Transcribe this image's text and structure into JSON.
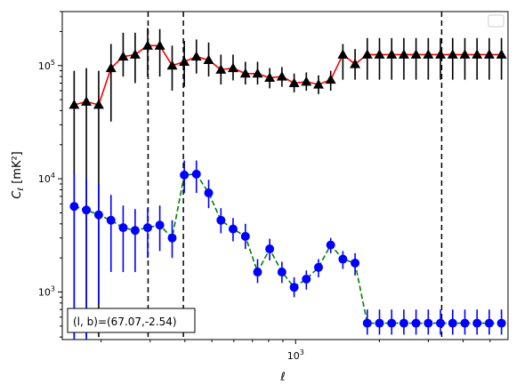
{
  "chart_data": {
    "type": "line",
    "xscale": "log",
    "yscale": "log",
    "xlim": [
      145,
      5800
    ],
    "ylim": [
      380,
      300000
    ],
    "xlabel": "ℓ",
    "ylabel_main": "C",
    "ylabel_sub": "ℓ",
    "ylabel_units": "[mK²]",
    "x_major_ticks": [
      {
        "value": 1000,
        "base": "10",
        "exp": "3"
      }
    ],
    "y_major_ticks": [
      {
        "value": 1000,
        "base": "10",
        "exp": "3"
      },
      {
        "value": 10000,
        "base": "10",
        "exp": "4"
      },
      {
        "value": 100000,
        "base": "10",
        "exp": "5"
      }
    ],
    "vlines": [
      295,
      395,
      3350
    ],
    "annotation": "(l, b)=(67.07,-2.54)",
    "legend": {
      "placement": "top-right",
      "entries": []
    },
    "series": [
      {
        "color": "#ff0000",
        "marker": "triangle",
        "marker_color": "#000000",
        "errorbar_color": "#000000",
        "linestyle": "solid",
        "x": [
          160,
          177,
          196,
          217,
          240,
          265,
          294,
          325,
          360,
          398,
          440,
          487,
          539,
          596,
          660,
          730,
          807,
          893,
          988,
          1093,
          1209,
          1337,
          1479,
          1636,
          1810,
          2002,
          2215,
          2450,
          2710,
          2998,
          3317,
          3669,
          4059,
          4490,
          4967,
          5495
        ],
        "y": [
          45000,
          48000,
          45000,
          95000,
          120000,
          125000,
          150000,
          150000,
          100000,
          108000,
          120000,
          112000,
          92000,
          95000,
          85000,
          85000,
          78000,
          80000,
          70000,
          72000,
          68000,
          75000,
          125000,
          103000,
          125000,
          125000,
          125000,
          125000,
          125000,
          125000,
          125000,
          125000,
          125000,
          125000,
          125000,
          125000
        ],
        "yerr_low": [
          400,
          400,
          400,
          32000,
          80000,
          70000,
          80000,
          80000,
          60000,
          65000,
          85000,
          80000,
          68000,
          74000,
          68000,
          68000,
          63000,
          65000,
          58000,
          60000,
          56000,
          60000,
          75000,
          75000,
          75000,
          75000,
          75000,
          75000,
          75000,
          75000,
          75000,
          75000,
          75000,
          75000,
          75000,
          75000
        ],
        "yerr_high": [
          90000,
          95000,
          90000,
          155000,
          195000,
          195000,
          215000,
          210000,
          150000,
          165000,
          170000,
          160000,
          125000,
          125000,
          108000,
          108000,
          95000,
          97000,
          85000,
          87000,
          82000,
          90000,
          155000,
          140000,
          175000,
          175000,
          175000,
          175000,
          175000,
          175000,
          175000,
          175000,
          175000,
          175000,
          175000,
          175000
        ]
      },
      {
        "color": "#008000",
        "marker": "circle",
        "marker_color": "#0000ff",
        "errorbar_color": "#0000ff",
        "linestyle": "dashed",
        "x": [
          160,
          177,
          196,
          217,
          240,
          265,
          294,
          325,
          360,
          398,
          440,
          487,
          539,
          596,
          660,
          730,
          807,
          893,
          988,
          1093,
          1209,
          1337,
          1479,
          1636,
          1810,
          2002,
          2215,
          2450,
          2710,
          2998,
          3317,
          3669,
          4059,
          4490,
          4967,
          5495
        ],
        "y": [
          5700,
          5300,
          4800,
          4300,
          3700,
          3500,
          3700,
          3900,
          3000,
          10800,
          11000,
          7500,
          4300,
          3600,
          3100,
          1500,
          2400,
          1500,
          1100,
          1300,
          1650,
          2600,
          1950,
          1800,
          530,
          530,
          530,
          530,
          530,
          530,
          530,
          530,
          530,
          530,
          530,
          530
        ],
        "yerr_low": [
          380,
          380,
          800,
          1500,
          1500,
          1500,
          2000,
          2300,
          2000,
          7500,
          7500,
          5500,
          3300,
          2800,
          2400,
          1200,
          1900,
          1200,
          900,
          1050,
          1350,
          2200,
          1600,
          1400,
          420,
          420,
          420,
          420,
          420,
          420,
          420,
          420,
          420,
          420,
          420,
          420
        ],
        "yerr_high": [
          11000,
          10000,
          9000,
          7200,
          5800,
          5400,
          5500,
          5800,
          4300,
          14500,
          14500,
          9800,
          5500,
          4500,
          4000,
          1950,
          2950,
          1850,
          1350,
          1550,
          1950,
          3000,
          2300,
          2200,
          700,
          700,
          700,
          700,
          700,
          700,
          700,
          700,
          700,
          700,
          700,
          700
        ]
      }
    ]
  }
}
